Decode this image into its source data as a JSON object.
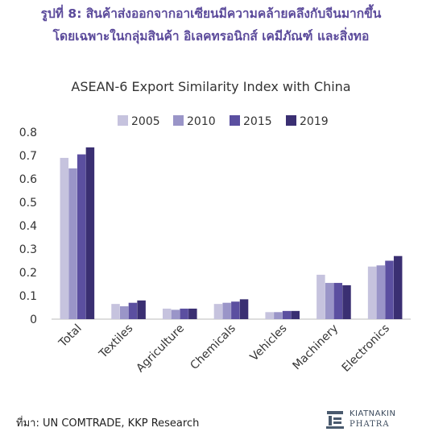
{
  "figure_title_line1": "รูปที่ 8: สินค้าส่งออกจากอาเซียนมีความคล้ายคลึงกับจีนมากขึ้น",
  "figure_title_line2": "โดยเฉพาะในกลุ่มสินค้า อิเลคทรอนิกส์ เคมีภัณฑ์ และสิ่งทอ",
  "source": "ที่มา: UN COMTRADE, KKP Research",
  "logo": {
    "line1": "KIATNAKIN",
    "line2": "PHATRA",
    "icon": "kkp-logo-icon"
  },
  "colors": {
    "title": "#5b4a9b",
    "series": [
      "#c6c3de",
      "#9a95c8",
      "#5b4fa0",
      "#3a2f72"
    ]
  },
  "chart_data": {
    "type": "bar",
    "title": "ASEAN-6  Export Similarity Index with China",
    "categories": [
      "Total",
      "Textiles",
      "Agriculture",
      "Chemicals",
      "Vehicles",
      "Machinery",
      "Electronics"
    ],
    "series": [
      {
        "name": "2005",
        "values": [
          0.69,
          0.065,
          0.045,
          0.065,
          0.03,
          0.19,
          0.225
        ]
      },
      {
        "name": "2010",
        "values": [
          0.645,
          0.055,
          0.04,
          0.07,
          0.03,
          0.155,
          0.23
        ]
      },
      {
        "name": "2015",
        "values": [
          0.705,
          0.07,
          0.045,
          0.075,
          0.035,
          0.155,
          0.25
        ]
      },
      {
        "name": "2019",
        "values": [
          0.735,
          0.08,
          0.045,
          0.085,
          0.035,
          0.145,
          0.27
        ]
      }
    ],
    "ylim": [
      0,
      0.8
    ],
    "yticks": [
      "0",
      "0.1",
      "0.2",
      "0.3",
      "0.4",
      "0.5",
      "0.6",
      "0.7",
      "0.8"
    ],
    "ytick_values": [
      0,
      0.1,
      0.2,
      0.3,
      0.4,
      0.5,
      0.6,
      0.7,
      0.8
    ],
    "xlabel": "",
    "ylabel": "",
    "grid": false,
    "legend_position": "top"
  }
}
